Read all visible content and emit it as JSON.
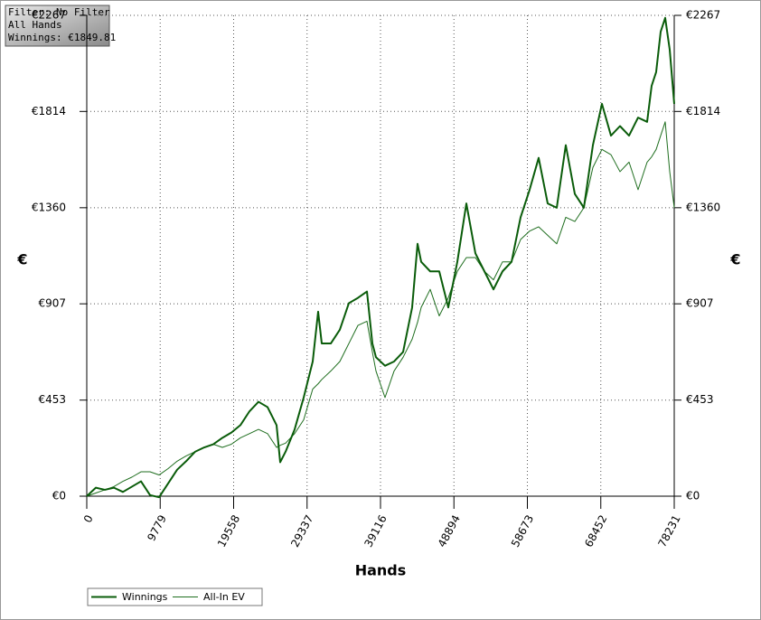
{
  "chart_data": {
    "type": "line",
    "annotations": [
      "Filter: No Filter",
      "All Hands",
      "Winnings: €1849.81"
    ],
    "xlabel": "Hands",
    "ylabel": "€",
    "x": [
      0,
      1204,
      2407,
      3611,
      4814,
      6018,
      7221,
      8425,
      9628,
      10832,
      12036,
      13239,
      14443,
      15646,
      16850,
      18053,
      19257,
      20460,
      21664,
      22867,
      24071,
      25275,
      25756,
      26478,
      27682,
      28885,
      30089,
      30811,
      31292,
      32496,
      33699,
      34903,
      36107,
      37310,
      38032,
      38514,
      39717,
      40921,
      42124,
      43328,
      44050,
      44531,
      45735,
      46938,
      48142,
      49346,
      50549,
      51753,
      52956,
      54160,
      55363,
      56567,
      57770,
      58974,
      60177,
      61381,
      62585,
      63788,
      64992,
      66195,
      67399,
      68602,
      69806,
      71009,
      72213,
      73416,
      74620,
      75222,
      75824,
      76425,
      77027,
      77629,
      78231
    ],
    "series": [
      {
        "name": "Winnings",
        "color": "#0a5c0a",
        "values": [
          0,
          40,
          30,
          40,
          20,
          45,
          70,
          5,
          -5,
          60,
          125,
          165,
          210,
          230,
          245,
          275,
          300,
          335,
          400,
          445,
          420,
          335,
          160,
          210,
          315,
          465,
          635,
          870,
          720,
          720,
          785,
          910,
          935,
          965,
          720,
          655,
          615,
          635,
          680,
          890,
          1190,
          1105,
          1060,
          1060,
          890,
          1105,
          1380,
          1145,
          1060,
          975,
          1060,
          1105,
          1315,
          1445,
          1595,
          1380,
          1360,
          1655,
          1425,
          1360,
          1655,
          1850,
          1700,
          1745,
          1700,
          1785,
          1765,
          1935,
          2000,
          2190,
          2255,
          2105,
          1849.81
        ]
      },
      {
        "name": "All-In EV",
        "color": "#1f6e1f",
        "values": [
          0,
          15,
          30,
          45,
          70,
          90,
          115,
          115,
          100,
          130,
          165,
          190,
          210,
          230,
          245,
          230,
          245,
          275,
          295,
          315,
          295,
          230,
          240,
          250,
          295,
          360,
          505,
          530,
          550,
          590,
          635,
          720,
          805,
          825,
          680,
          590,
          465,
          590,
          655,
          740,
          820,
          890,
          975,
          850,
          935,
          1060,
          1125,
          1125,
          1060,
          1020,
          1105,
          1105,
          1210,
          1250,
          1270,
          1230,
          1190,
          1315,
          1295,
          1360,
          1550,
          1635,
          1610,
          1530,
          1575,
          1445,
          1575,
          1600,
          1635,
          1700,
          1765,
          1530,
          1360
        ]
      }
    ],
    "xlim": [
      0,
      78231
    ],
    "xticks": [
      0,
      9779,
      19558,
      29337,
      39116,
      48894,
      58673,
      68452,
      78231
    ],
    "ylim": [
      0,
      2267
    ],
    "yticks": [
      {
        "value": 0,
        "label": "€0"
      },
      {
        "value": 453,
        "label": "€453"
      },
      {
        "value": 907,
        "label": "€907"
      },
      {
        "value": 1360,
        "label": "€1360"
      },
      {
        "value": 1814,
        "label": "€1814"
      },
      {
        "value": 2267,
        "label": "€2267"
      }
    ],
    "grid": true
  }
}
